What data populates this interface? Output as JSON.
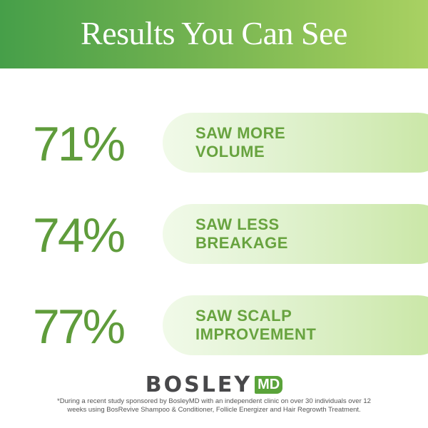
{
  "header": {
    "title": "Results You Can See"
  },
  "stats": [
    {
      "percent": "71%",
      "label_line1": "SAW MORE",
      "label_line2": "VOLUME"
    },
    {
      "percent": "74%",
      "label_line1": "SAW LESS",
      "label_line2": "BREAKAGE"
    },
    {
      "percent": "77%",
      "label_line1": "SAW SCALP",
      "label_line2": "IMPROVEMENT"
    }
  ],
  "brand": {
    "name": "BOSLEY",
    "badge": "MD"
  },
  "footnote": {
    "line1": "*During a recent study sponsored by BosleyMD with an independent clinic on over 30 individuals over 12",
    "line2": "weeks using BosRevive Shampoo & Conditioner, Follicle Energizer and Hair Regrowth Treatment."
  },
  "colors": {
    "header_start": "#469f49",
    "header_end": "#a9d163",
    "accent_green": "#5f9c3b",
    "logo_gray": "#48484a"
  }
}
